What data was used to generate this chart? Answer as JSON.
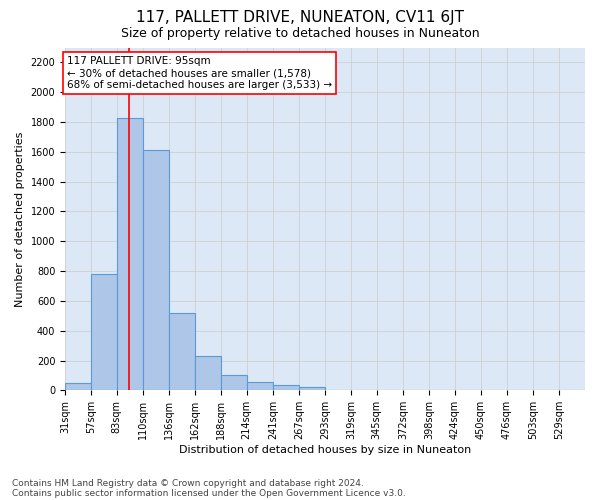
{
  "title": "117, PALLETT DRIVE, NUNEATON, CV11 6JT",
  "subtitle": "Size of property relative to detached houses in Nuneaton",
  "xlabel": "Distribution of detached houses by size in Nuneaton",
  "ylabel": "Number of detached properties",
  "footnote1": "Contains HM Land Registry data © Crown copyright and database right 2024.",
  "footnote2": "Contains public sector information licensed under the Open Government Licence v3.0.",
  "bar_edges": [
    31,
    57,
    83,
    110,
    136,
    162,
    188,
    214,
    241,
    267,
    293,
    319,
    345,
    372,
    398,
    424,
    450,
    476,
    503,
    529,
    555
  ],
  "bar_heights": [
    50,
    780,
    1830,
    1610,
    520,
    230,
    105,
    58,
    35,
    20,
    0,
    0,
    0,
    0,
    0,
    0,
    0,
    0,
    0,
    0
  ],
  "bar_color": "#aec6e8",
  "bar_edge_color": "#5b9bd5",
  "bar_linewidth": 0.8,
  "redline_x": 95,
  "ylim": [
    0,
    2300
  ],
  "yticks": [
    0,
    200,
    400,
    600,
    800,
    1000,
    1200,
    1400,
    1600,
    1800,
    2000,
    2200
  ],
  "grid_color": "#cccccc",
  "bg_color": "#dce8f5",
  "annotation_text": "117 PALLETT DRIVE: 95sqm\n← 30% of detached houses are smaller (1,578)\n68% of semi-detached houses are larger (3,533) →",
  "title_fontsize": 11,
  "subtitle_fontsize": 9,
  "label_fontsize": 8,
  "tick_fontsize": 7,
  "annot_fontsize": 7.5,
  "footnote_fontsize": 6.5
}
